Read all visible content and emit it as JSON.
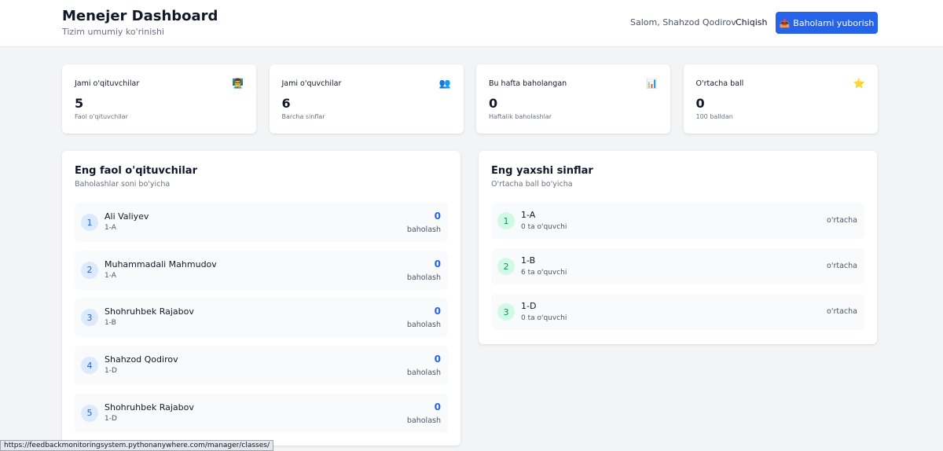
{
  "header": {
    "title": "Menejer Dashboard",
    "subtitle": "Tizim umumiy ko'rinishi",
    "greeting": "Salom, Shahzod Qodirov",
    "logout": "Chiqish",
    "button": "Baholarni yuborish"
  },
  "stats": [
    {
      "label": "Jami o'qituvchilar",
      "value": 5,
      "note": "Faol o'qituvchilar"
    },
    {
      "label": "Jami o'quvchilar",
      "value": 6,
      "note": "Barcha sinflar"
    },
    {
      "label": "Bu hafta baholangan",
      "value": 0,
      "note": "Haftalik baholashlar"
    },
    {
      "label": "O'rtacha ball",
      "value": 0,
      "note": "100 balldan"
    }
  ],
  "teachers": {
    "title": "Eng faol o'qituvchilar",
    "subtitle": "Baholashlar soni bo'yicha",
    "items": [
      {
        "rank": 1,
        "name": "Ali Valiyev",
        "class": "1-A",
        "count": 0,
        "unit": "baholash"
      },
      {
        "rank": 2,
        "name": "Muhammadali Mahmudov",
        "class": "1-A",
        "count": 0,
        "unit": "baholash"
      },
      {
        "rank": 3,
        "name": "Shohruhbek Rajabov",
        "class": "1-B",
        "count": 0,
        "unit": "baholash"
      },
      {
        "rank": 4,
        "name": "Shahzod Qodirov",
        "class": "1-D",
        "count": 0,
        "unit": "baholash"
      },
      {
        "rank": 5,
        "name": "Shohruhbek Rajabov",
        "class": "1-D",
        "count": 0,
        "unit": "baholash"
      }
    ]
  },
  "classes": {
    "title": "Eng yaxshi sinflar",
    "subtitle": "O'rtacha ball bo'yicha",
    "items": [
      {
        "rank": 1,
        "name": "1-A",
        "students": "0 ta o'quvchi",
        "score_label": "o'rtacha"
      },
      {
        "rank": 2,
        "name": "1-B",
        "students": "6 ta o'quvchi",
        "score_label": "o'rtacha"
      },
      {
        "rank": 3,
        "name": "1-D",
        "students": "0 ta o'quvchi",
        "score_label": "o'rtacha"
      }
    ]
  },
  "status_url": "https://feedbackmonitoringsystem.pythonanywhere.com/manager/classes/"
}
